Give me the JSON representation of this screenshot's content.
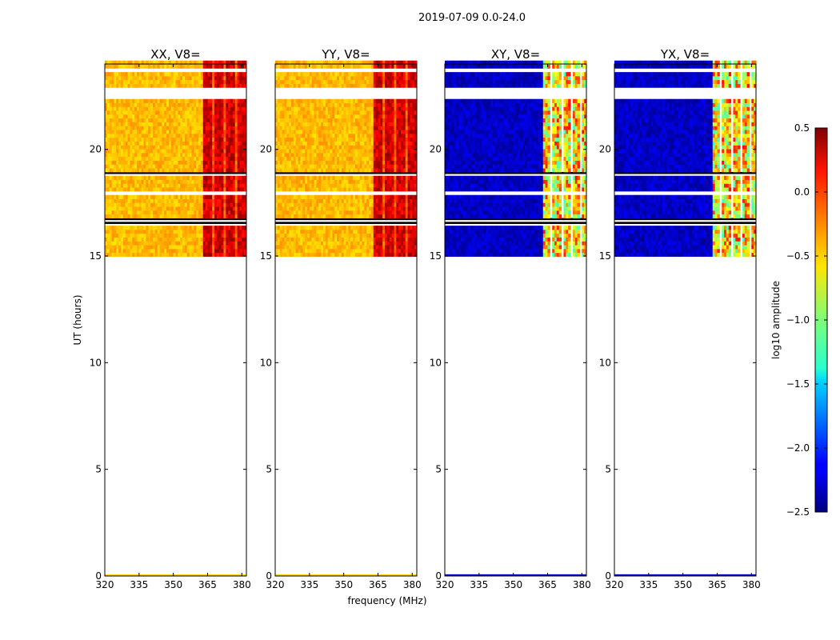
{
  "chart_data": {
    "type": "heatmap",
    "suptitle": "2019-07-09 0.0-24.0",
    "panels": [
      {
        "title": "XX, V8=",
        "kind": "parallel"
      },
      {
        "title": "YY, V8=",
        "kind": "parallel"
      },
      {
        "title": "XY, V8=",
        "kind": "cross"
      },
      {
        "title": "YX, V8=",
        "kind": "cross"
      }
    ],
    "xlabel": "frequency (MHz)",
    "ylabel": "UT (hours)",
    "xlim": [
      320,
      382
    ],
    "ylim": [
      0,
      24
    ],
    "xticks": [
      320,
      335,
      350,
      365,
      380
    ],
    "yticks": [
      0,
      5,
      10,
      15,
      20
    ],
    "data_start_hour": 14.8,
    "data_end_hour": 24,
    "bright_band_mhz": [
      363,
      382
    ],
    "colorbar": {
      "label": "log10 amplitude",
      "min": -2.5,
      "max": 0.5,
      "ticks": [
        "0.5",
        "0.0",
        "−0.5",
        "−1.0",
        "−1.5",
        "−2.0",
        "−2.5"
      ],
      "tick_values": [
        0.5,
        0.0,
        -0.5,
        -1.0,
        -1.5,
        -2.0,
        -2.5
      ],
      "colormap": "jet"
    }
  }
}
